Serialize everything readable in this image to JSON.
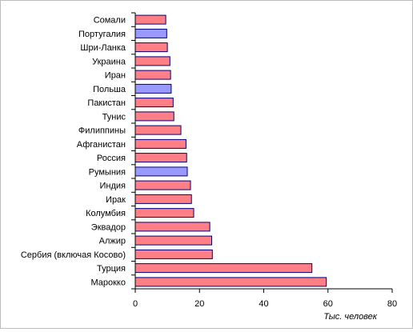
{
  "chart_data": {
    "type": "bar",
    "orientation": "horizontal",
    "title": "",
    "xlabel": "Тыс. человек",
    "ylabel": "",
    "xlim": [
      0,
      80
    ],
    "x_ticks": [
      0,
      20,
      40,
      60,
      80
    ],
    "grid": false,
    "legend": "none",
    "colors": {
      "default": "#ff7f86",
      "highlight": "#9999ff",
      "outline": "#000080"
    },
    "categories": [
      "Сомали",
      "Португалия",
      "Шри-Ланка",
      "Украина",
      "Иран",
      "Польша",
      "Пакистан",
      "Тунис",
      "Филиппины",
      "Афганистан",
      "Россия",
      "Румыния",
      "Индия",
      "Ирак",
      "Колумбия",
      "Эквадор",
      "Алжир",
      "Сербия (включая Косово)",
      "Турция",
      "Марокко"
    ],
    "values": [
      9.5,
      9.8,
      10.0,
      10.8,
      11.0,
      11.2,
      11.8,
      12.0,
      14.2,
      15.8,
      16.0,
      16.2,
      17.2,
      17.5,
      18.2,
      23.2,
      23.8,
      24.0,
      55.0,
      59.5
    ],
    "highlighted": [
      false,
      true,
      false,
      false,
      false,
      true,
      false,
      false,
      false,
      false,
      false,
      true,
      false,
      false,
      false,
      false,
      false,
      false,
      false,
      false
    ]
  }
}
